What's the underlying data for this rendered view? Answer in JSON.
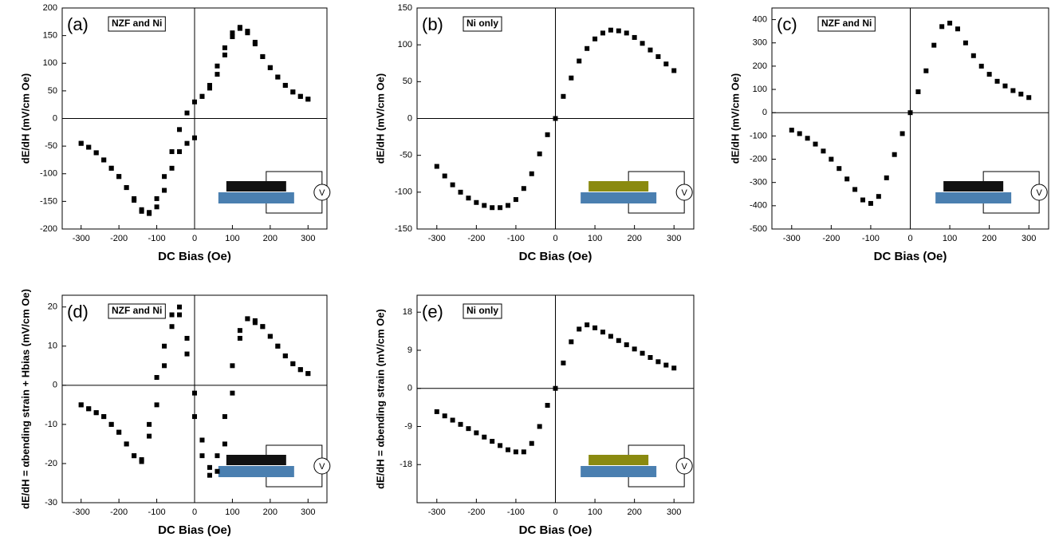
{
  "chart_data": [
    {
      "type": "scatter",
      "panel": "(a)",
      "tag": "NZF and Ni",
      "x_label": "DC Bias (Oe)",
      "y_label": "dE/dH (mV/cm Oe)",
      "inset_label": "V",
      "xlim": [
        -350,
        350
      ],
      "ylim": [
        -200,
        200
      ],
      "xticks": [
        -300,
        -200,
        -100,
        0,
        100,
        200,
        300
      ],
      "yticks": [
        -200,
        -150,
        -100,
        -50,
        0,
        50,
        100,
        150,
        200
      ],
      "x": [
        -300,
        -280,
        -260,
        -240,
        -220,
        -200,
        -180,
        -160,
        -140,
        -120,
        -100,
        -80,
        -60,
        -40,
        -20,
        0,
        20,
        40,
        60,
        80,
        100,
        120,
        140,
        160,
        180,
        200,
        220,
        240,
        260,
        280,
        300
      ],
      "series": [
        {
          "color": "#000000",
          "values": [
            -45,
            -52,
            -62,
            -75,
            -90,
            -105,
            -125,
            -145,
            -165,
            -172,
            -160,
            -130,
            -90,
            -60,
            -45,
            -35,
            40,
            60,
            95,
            128,
            155,
            165,
            155,
            135,
            112,
            92,
            75,
            60,
            48,
            40,
            35
          ]
        },
        {
          "color": "#000000",
          "values": [
            -45,
            -52,
            -62,
            -75,
            -90,
            -105,
            -125,
            -148,
            -168,
            -170,
            -145,
            -105,
            -60,
            -20,
            10,
            30,
            40,
            55,
            80,
            115,
            148,
            163,
            158,
            138,
            112,
            92,
            75,
            60,
            48,
            40,
            35
          ]
        }
      ]
    },
    {
      "type": "scatter",
      "panel": "(b)",
      "tag": "Ni only",
      "x_label": "DC Bias (Oe)",
      "y_label": "dE/dH (mV/cm Oe)",
      "inset_label": "V",
      "xlim": [
        -350,
        350
      ],
      "ylim": [
        -150,
        150
      ],
      "xticks": [
        -300,
        -200,
        -100,
        0,
        100,
        200,
        300
      ],
      "yticks": [
        -150,
        -100,
        -50,
        0,
        50,
        100,
        150
      ],
      "x": [
        -300,
        -280,
        -260,
        -240,
        -220,
        -200,
        -180,
        -160,
        -140,
        -120,
        -100,
        -80,
        -60,
        -40,
        -20,
        0,
        20,
        40,
        60,
        80,
        100,
        120,
        140,
        160,
        180,
        200,
        220,
        240,
        260,
        280,
        300
      ],
      "series": [
        {
          "color": "#000000",
          "values": [
            -65,
            -78,
            -90,
            -100,
            -108,
            -114,
            -118,
            -121,
            -121,
            -118,
            -110,
            -95,
            -75,
            -48,
            -22,
            0,
            30,
            55,
            78,
            95,
            108,
            116,
            120,
            119,
            116,
            110,
            102,
            93,
            84,
            74,
            65
          ]
        }
      ]
    },
    {
      "type": "scatter",
      "panel": "(c)",
      "tag": "NZF and Ni",
      "x_label": "DC Bias (Oe)",
      "y_label": "dE/dH (mV/cm Oe)",
      "inset_label": "V",
      "xlim": [
        -350,
        350
      ],
      "ylim": [
        -500,
        450
      ],
      "xticks": [
        -300,
        -200,
        -100,
        0,
        100,
        200,
        300
      ],
      "yticks": [
        -500,
        -400,
        -300,
        -200,
        -100,
        0,
        100,
        200,
        300,
        400
      ],
      "x": [
        -300,
        -280,
        -260,
        -240,
        -220,
        -200,
        -180,
        -160,
        -140,
        -120,
        -100,
        -80,
        -60,
        -40,
        -20,
        0,
        20,
        40,
        60,
        80,
        100,
        120,
        140,
        160,
        180,
        200,
        220,
        240,
        260,
        280,
        300
      ],
      "series": [
        {
          "color": "#000000",
          "values": [
            -75,
            -90,
            -110,
            -135,
            -165,
            -200,
            -240,
            -285,
            -330,
            -375,
            -390,
            -360,
            -280,
            -180,
            -90,
            0,
            90,
            180,
            290,
            370,
            385,
            360,
            300,
            245,
            200,
            165,
            135,
            115,
            95,
            80,
            65
          ]
        }
      ]
    },
    {
      "type": "scatter",
      "panel": "(d)",
      "tag": "NZF and Ni",
      "x_label": "DC Bias (Oe)",
      "y_label": "dE/dH = αbending strain + Hbias (mV/cm Oe)",
      "inset_label": "V",
      "xlim": [
        -350,
        350
      ],
      "ylim": [
        -30,
        23
      ],
      "xticks": [
        -300,
        -200,
        -100,
        0,
        100,
        200,
        300
      ],
      "yticks": [
        -30,
        -20,
        -10,
        0,
        10,
        20
      ],
      "x": [
        -300,
        -280,
        -260,
        -240,
        -220,
        -200,
        -180,
        -160,
        -140,
        -120,
        -100,
        -80,
        -60,
        -40,
        -20,
        0,
        20,
        40,
        60,
        80,
        100,
        120,
        140,
        160,
        180,
        200,
        220,
        240,
        260,
        280,
        300
      ],
      "series": [
        {
          "color": "#000000",
          "values": [
            -5,
            -6,
            -7,
            -8,
            -10,
            -12,
            -15,
            -18,
            -19,
            -13,
            -5,
            5,
            15,
            18,
            8,
            -8,
            -18,
            -23,
            -22,
            -15,
            -2,
            12,
            17,
            16.5,
            15,
            12.5,
            10,
            7.5,
            5.5,
            4,
            3
          ]
        },
        {
          "color": "#000000",
          "values": [
            -5,
            -6,
            -7,
            -8,
            -10,
            -12,
            -15,
            -18,
            -19.5,
            -10,
            2,
            10,
            18,
            20,
            12,
            -2,
            -14,
            -21,
            -18,
            -8,
            5,
            14,
            17,
            16,
            15,
            12.5,
            10,
            7.5,
            5.5,
            4,
            3
          ]
        }
      ]
    },
    {
      "type": "scatter",
      "panel": "(e)",
      "tag": "Ni only",
      "x_label": "DC Bias (Oe)",
      "y_label": "dE/dH = αbending strain (mV/cm Oe)",
      "inset_label": "V",
      "xlim": [
        -350,
        350
      ],
      "ylim": [
        -27,
        22
      ],
      "xticks": [
        -300,
        -200,
        -100,
        0,
        100,
        200,
        300
      ],
      "yticks": [
        -18,
        -9,
        0,
        9,
        18
      ],
      "x": [
        -300,
        -280,
        -260,
        -240,
        -220,
        -200,
        -180,
        -160,
        -140,
        -120,
        -100,
        -80,
        -60,
        -40,
        -20,
        0,
        20,
        40,
        60,
        80,
        100,
        120,
        140,
        160,
        180,
        200,
        220,
        240,
        260,
        280,
        300
      ],
      "series": [
        {
          "color": "#000000",
          "values": [
            -5.5,
            -6.5,
            -7.5,
            -8.5,
            -9.5,
            -10.5,
            -11.5,
            -12.5,
            -13.5,
            -14.5,
            -15,
            -15,
            -13,
            -9,
            -4,
            0,
            6,
            11,
            14,
            15,
            14.3,
            13.3,
            12.3,
            11.3,
            10.3,
            9.3,
            8.3,
            7.3,
            6.3,
            5.5,
            4.8
          ]
        }
      ]
    }
  ]
}
